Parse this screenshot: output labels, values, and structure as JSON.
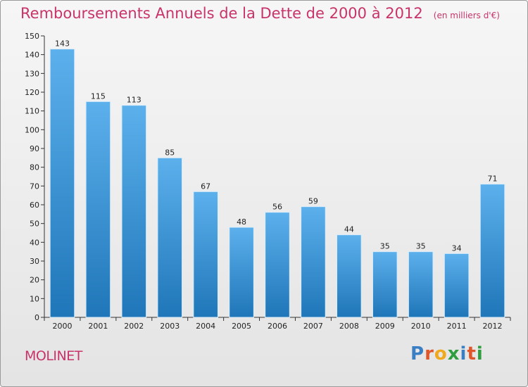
{
  "header": {
    "title": "Remboursements Annuels de la Dette de 2000 à 2012",
    "subtitle": "(en milliers d'€)"
  },
  "footer": {
    "commune": "MOLINET",
    "logo_text": "Proxiti",
    "logo_letters": [
      {
        "char": "P",
        "color": "#3a7fc4"
      },
      {
        "char": "r",
        "color": "#e0562b"
      },
      {
        "char": "o",
        "color": "#f0a81c"
      },
      {
        "char": "x",
        "color": "#2f9e3e"
      },
      {
        "char": "i",
        "color": "#3a7fc4"
      },
      {
        "char": "t",
        "color": "#e0562b"
      },
      {
        "char": "i",
        "color": "#2f9e3e"
      }
    ]
  },
  "colors": {
    "bar_light": "#5cb0ec",
    "bar_dark": "#1f76b8",
    "title": "#c8336a"
  },
  "chart_data": {
    "type": "bar",
    "title": "Remboursements Annuels de la Dette de 2000 à 2012",
    "subtitle": "(en milliers d'€)",
    "categories": [
      "2000",
      "2001",
      "2002",
      "2003",
      "2004",
      "2005",
      "2006",
      "2007",
      "2008",
      "2009",
      "2010",
      "2011",
      "2012"
    ],
    "values": [
      143,
      115,
      113,
      85,
      67,
      48,
      56,
      59,
      44,
      35,
      35,
      34,
      71
    ],
    "xlabel": "",
    "ylabel": "",
    "ylim": [
      0,
      150
    ],
    "yticks": [
      0,
      10,
      20,
      30,
      40,
      50,
      60,
      70,
      80,
      90,
      100,
      110,
      120,
      130,
      140,
      150
    ],
    "grid": false,
    "data_labels": true
  }
}
